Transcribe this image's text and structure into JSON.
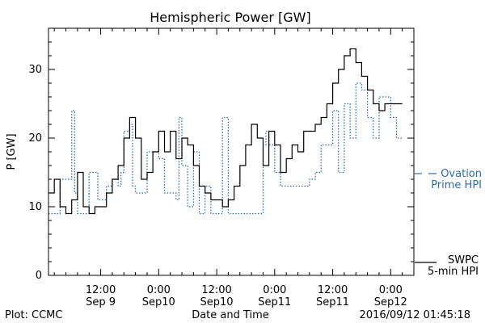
{
  "chart_data": {
    "type": "line",
    "title": "Hemispheric Power [GW]",
    "ylabel": "P [GW]",
    "xlabel": "Date and Time",
    "ylim": [
      0,
      36
    ],
    "xlim": [
      -9,
      54
    ],
    "grid": false,
    "yticks": [
      {
        "value": 0,
        "label": "0"
      },
      {
        "value": 10,
        "label": "10"
      },
      {
        "value": 20,
        "label": "20"
      },
      {
        "value": 30,
        "label": "30"
      }
    ],
    "xticks": [
      {
        "value": 0,
        "time": "12:00",
        "date": "Sep 9"
      },
      {
        "value": 10,
        "time": "0:00",
        "date": "Sep10"
      },
      {
        "value": 20,
        "time": "12:00",
        "date": "Sep10"
      },
      {
        "value": 30,
        "time": "0:00",
        "date": "Sep11"
      },
      {
        "value": 40,
        "time": "12:00",
        "date": "Sep11"
      },
      {
        "value": 50,
        "time": "0:00",
        "date": "Sep12"
      }
    ],
    "series": [
      {
        "name": "Ovation Prime HPI",
        "legend_lines": [
          "Ovation",
          "Prime HPI"
        ],
        "color": "#2b6cb0",
        "style": "dotted",
        "x": [
          -9,
          -8,
          -7,
          -5,
          -4.5,
          -4,
          -3,
          -2,
          -1,
          -0.5,
          0,
          1,
          2,
          2.5,
          3,
          3.5,
          4,
          5,
          5.5,
          6,
          7,
          8,
          9,
          10,
          11,
          12,
          13,
          13.5,
          14,
          15,
          16,
          17,
          18,
          19,
          20,
          21,
          22,
          23,
          24,
          25,
          26,
          27,
          28,
          28.5,
          29,
          30,
          31,
          32,
          33,
          34,
          35,
          36,
          37,
          38,
          39,
          40,
          41,
          42,
          43,
          44,
          45,
          46,
          47,
          48,
          49,
          50,
          51,
          52
        ],
        "values": [
          9,
          9,
          14,
          24,
          12,
          9,
          9,
          15,
          15,
          11,
          11,
          13,
          14,
          14,
          13,
          15,
          21,
          22,
          13,
          12,
          12,
          18,
          18,
          17,
          12,
          12,
          11,
          23,
          16,
          10,
          18,
          9,
          13,
          9,
          9,
          23,
          9,
          9,
          9,
          9,
          9,
          9,
          19,
          21,
          19,
          15,
          13,
          13,
          13,
          13,
          13,
          14,
          15,
          19,
          19,
          24,
          15,
          25,
          20,
          28,
          27,
          23,
          20,
          26,
          26,
          23,
          20,
          20
        ]
      },
      {
        "name": "SWPC 5-min HPI",
        "legend_lines": [
          "SWPC",
          "5-min HPI"
        ],
        "color": "#000000",
        "style": "solid",
        "x": [
          -9,
          -8,
          -7,
          -6,
          -5,
          -4,
          -3,
          -2,
          -1,
          0,
          1,
          2,
          3,
          4,
          5,
          6,
          7,
          8,
          9,
          10,
          11,
          12,
          13,
          14,
          15,
          16,
          17,
          18,
          19,
          20,
          21,
          22,
          23,
          24,
          25,
          26,
          27,
          28,
          29,
          30,
          31,
          32,
          33,
          34,
          35,
          36,
          37,
          38,
          39,
          40,
          41,
          42,
          43,
          44,
          45,
          46,
          47,
          48,
          49,
          50,
          51,
          52
        ],
        "values": [
          12,
          14,
          10,
          9,
          11,
          15,
          10,
          9,
          10,
          10,
          12,
          14,
          16,
          20,
          23,
          20,
          14,
          15,
          18,
          21,
          18,
          21,
          17,
          20,
          19,
          16,
          13,
          12,
          11,
          11,
          10,
          11,
          13,
          16,
          19,
          22,
          20,
          16,
          21,
          19,
          15,
          17,
          19,
          18,
          21,
          21,
          22,
          23,
          25,
          28,
          30,
          32,
          33,
          31,
          29,
          27,
          25,
          24,
          25,
          25,
          25,
          25
        ]
      }
    ]
  },
  "footer": {
    "left": "Plot: CCMC",
    "center": "Date and Time",
    "right": "2016/09/12 01:45:18"
  }
}
